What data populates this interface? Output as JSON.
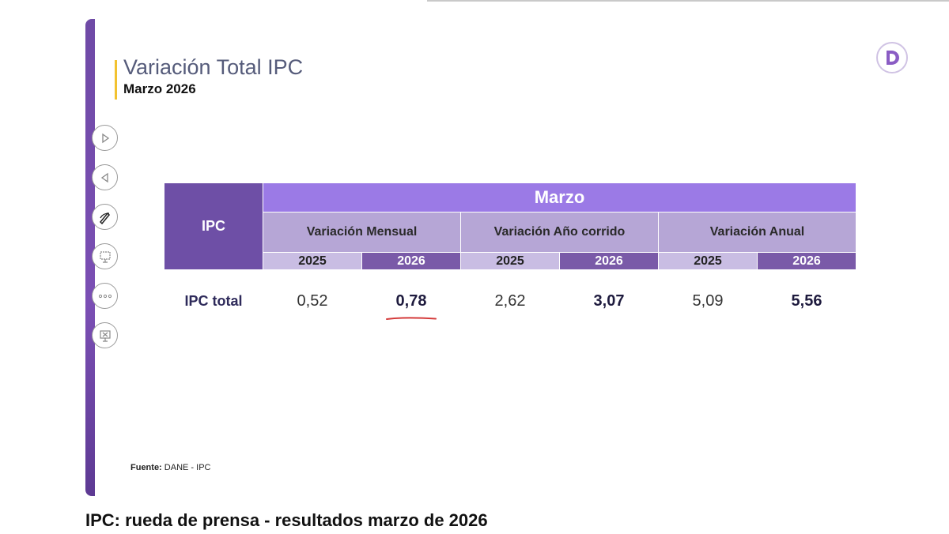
{
  "slide": {
    "title": "Variación Total IPC",
    "subtitle": "Marzo 2026",
    "source_label": "Fuente:",
    "source_text": "DANE - IPC"
  },
  "table": {
    "row_header": "IPC",
    "month_header": "Marzo",
    "groups": [
      "Variación Mensual",
      "Variación Año corrido",
      "Variación Anual"
    ],
    "years": [
      "2025",
      "2026"
    ],
    "row_label": "IPC total",
    "values": [
      "0,52",
      "0,78",
      "2,62",
      "3,07",
      "5,09",
      "5,56"
    ]
  },
  "caption": "IPC: rueda de prensa - resultados marzo de 2026",
  "toolbar": {
    "icons": [
      "play-next-icon",
      "play-previous-icon",
      "pen-icon",
      "slide-view-icon",
      "more-options-icon",
      "end-show-icon"
    ]
  },
  "colors": {
    "accent_purple": "#9b7ae6",
    "dark_purple": "#6e4fa6",
    "light_purple": "#b6a6d6",
    "highlight_underline": "#d43a3a",
    "title_bar_yellow": "#f2c230"
  }
}
